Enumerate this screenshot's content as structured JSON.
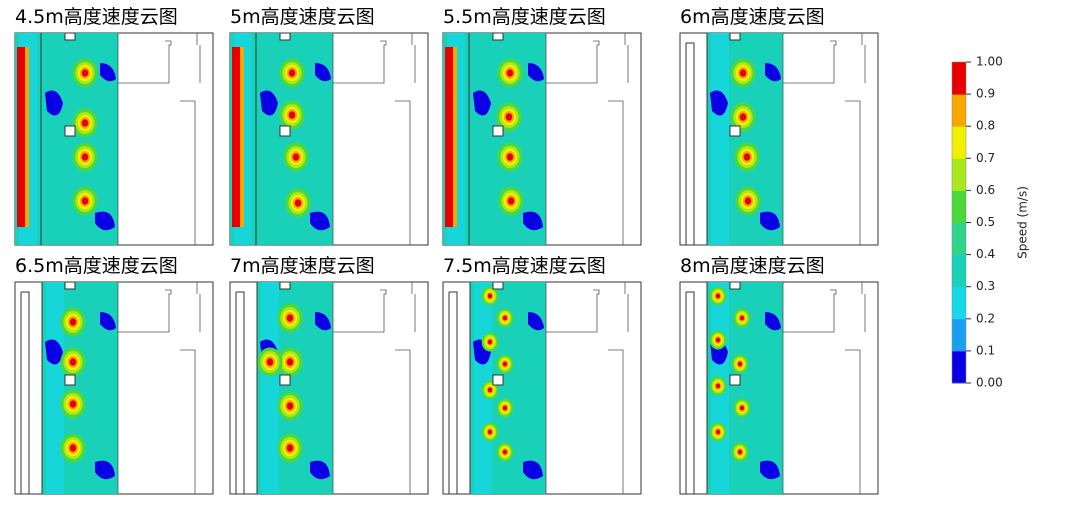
{
  "panels": [
    {
      "title": "4.5m高度速度云图"
    },
    {
      "title": "5m高度速度云图"
    },
    {
      "title": "5.5m高度速度云图"
    },
    {
      "title": "6m高度速度云图"
    },
    {
      "title": "6.5m高度速度云图"
    },
    {
      "title": "7m高度速度云图"
    },
    {
      "title": "7.5m高度速度云图"
    },
    {
      "title": "8m高度速度云图"
    }
  ],
  "colorbar": {
    "label": "Speed (m/s)",
    "lim": [
      0,
      1
    ],
    "colors": [
      "#0a00e6",
      "#1aa0f0",
      "#15d8e8",
      "#19d1b8",
      "#2fd48a",
      "#4bd83a",
      "#a8e81c",
      "#f1f000",
      "#f7a800",
      "#e80000"
    ],
    "ticks": [
      {
        "value": 0,
        "label": "0.00"
      },
      0.1,
      0.2,
      0.3,
      0.4,
      0.5,
      0.6,
      0.7,
      0.8,
      0.9,
      {
        "value": 1,
        "label": "1.00"
      }
    ]
  }
}
